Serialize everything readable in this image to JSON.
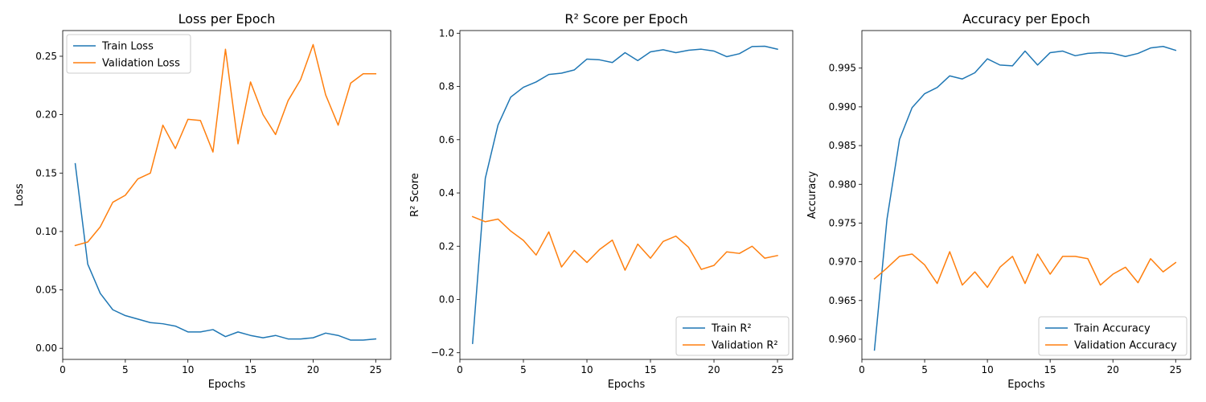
{
  "chart_data": [
    {
      "type": "line",
      "title": "Loss per Epoch",
      "xlabel": "Epochs",
      "ylabel": "Loss",
      "xlim": [
        0,
        26.2
      ],
      "ylim": [
        -0.0095,
        0.272
      ],
      "xticks": [
        0,
        5,
        10,
        15,
        20,
        25
      ],
      "yticks": [
        0.0,
        0.05,
        0.1,
        0.15,
        0.2,
        0.25
      ],
      "ytick_labels": [
        "0.00",
        "0.05",
        "0.10",
        "0.15",
        "0.20",
        "0.25"
      ],
      "grid": false,
      "legend_position": "top-left",
      "x": [
        1,
        2,
        3,
        4,
        5,
        6,
        7,
        8,
        9,
        10,
        11,
        12,
        13,
        14,
        15,
        16,
        17,
        18,
        19,
        20,
        21,
        22,
        23,
        24,
        25
      ],
      "series": [
        {
          "name": "Train Loss",
          "color": "#1f77b4",
          "values": [
            0.158,
            0.072,
            0.047,
            0.033,
            0.028,
            0.025,
            0.022,
            0.021,
            0.019,
            0.014,
            0.014,
            0.016,
            0.01,
            0.014,
            0.011,
            0.009,
            0.011,
            0.008,
            0.008,
            0.009,
            0.013,
            0.011,
            0.007,
            0.007,
            0.008
          ]
        },
        {
          "name": "Validation Loss",
          "color": "#ff7f0e",
          "values": [
            0.088,
            0.091,
            0.104,
            0.125,
            0.131,
            0.145,
            0.15,
            0.191,
            0.171,
            0.196,
            0.195,
            0.168,
            0.256,
            0.175,
            0.228,
            0.2,
            0.183,
            0.212,
            0.23,
            0.26,
            0.217,
            0.191,
            0.227,
            0.235,
            0.235
          ]
        }
      ]
    },
    {
      "type": "line",
      "title": "R² Score per Epoch",
      "xlabel": "Epochs",
      "ylabel": "R² Score",
      "xlim": [
        0,
        26.2
      ],
      "ylim": [
        -0.225,
        1.01
      ],
      "xticks": [
        0,
        5,
        10,
        15,
        20,
        25
      ],
      "yticks": [
        -0.2,
        0.0,
        0.2,
        0.4,
        0.6,
        0.8,
        1.0
      ],
      "ytick_labels": [
        "−0.2",
        "0.0",
        "0.2",
        "0.4",
        "0.6",
        "0.8",
        "1.0"
      ],
      "grid": false,
      "legend_position": "bottom-right",
      "x": [
        1,
        2,
        3,
        4,
        5,
        6,
        7,
        8,
        9,
        10,
        11,
        12,
        13,
        14,
        15,
        16,
        17,
        18,
        19,
        20,
        21,
        22,
        23,
        24,
        25
      ],
      "series": [
        {
          "name": "Train R²",
          "color": "#1f77b4",
          "values": [
            -0.165,
            0.455,
            0.655,
            0.76,
            0.797,
            0.817,
            0.845,
            0.85,
            0.862,
            0.903,
            0.9,
            0.89,
            0.927,
            0.897,
            0.93,
            0.938,
            0.927,
            0.936,
            0.94,
            0.933,
            0.912,
            0.923,
            0.95,
            0.951,
            0.94
          ]
        },
        {
          "name": "Validation R²",
          "color": "#ff7f0e",
          "values": [
            0.311,
            0.292,
            0.302,
            0.257,
            0.222,
            0.167,
            0.254,
            0.122,
            0.184,
            0.139,
            0.188,
            0.223,
            0.11,
            0.208,
            0.155,
            0.218,
            0.238,
            0.196,
            0.113,
            0.128,
            0.179,
            0.173,
            0.2,
            0.155,
            0.165
          ]
        }
      ]
    },
    {
      "type": "line",
      "title": "Accuracy per Epoch",
      "xlabel": "Epochs",
      "ylabel": "Accuracy",
      "xlim": [
        0,
        26.2
      ],
      "ylim": [
        0.9574,
        0.99985
      ],
      "xticks": [
        0,
        5,
        10,
        15,
        20,
        25
      ],
      "yticks": [
        0.96,
        0.965,
        0.97,
        0.975,
        0.98,
        0.985,
        0.99,
        0.995
      ],
      "ytick_labels": [
        "0.960",
        "0.965",
        "0.970",
        "0.975",
        "0.980",
        "0.985",
        "0.990",
        "0.995"
      ],
      "grid": false,
      "legend_position": "bottom-right",
      "x": [
        1,
        2,
        3,
        4,
        5,
        6,
        7,
        8,
        9,
        10,
        11,
        12,
        13,
        14,
        15,
        16,
        17,
        18,
        19,
        20,
        21,
        22,
        23,
        24,
        25
      ],
      "series": [
        {
          "name": "Train Accuracy",
          "color": "#1f77b4",
          "values": [
            0.9586,
            0.9755,
            0.9858,
            0.9899,
            0.9917,
            0.9925,
            0.994,
            0.9936,
            0.9944,
            0.9962,
            0.9954,
            0.9953,
            0.9972,
            0.9954,
            0.997,
            0.9972,
            0.9966,
            0.9969,
            0.997,
            0.9969,
            0.9965,
            0.9969,
            0.9976,
            0.9978,
            0.9973
          ]
        },
        {
          "name": "Validation Accuracy",
          "color": "#ff7f0e",
          "values": [
            0.9678,
            0.9692,
            0.9707,
            0.971,
            0.9696,
            0.9672,
            0.9713,
            0.967,
            0.9687,
            0.9667,
            0.9693,
            0.9707,
            0.9672,
            0.971,
            0.9684,
            0.9707,
            0.9707,
            0.9704,
            0.967,
            0.9684,
            0.9693,
            0.9673,
            0.9704,
            0.9687,
            0.9699
          ]
        }
      ]
    }
  ]
}
